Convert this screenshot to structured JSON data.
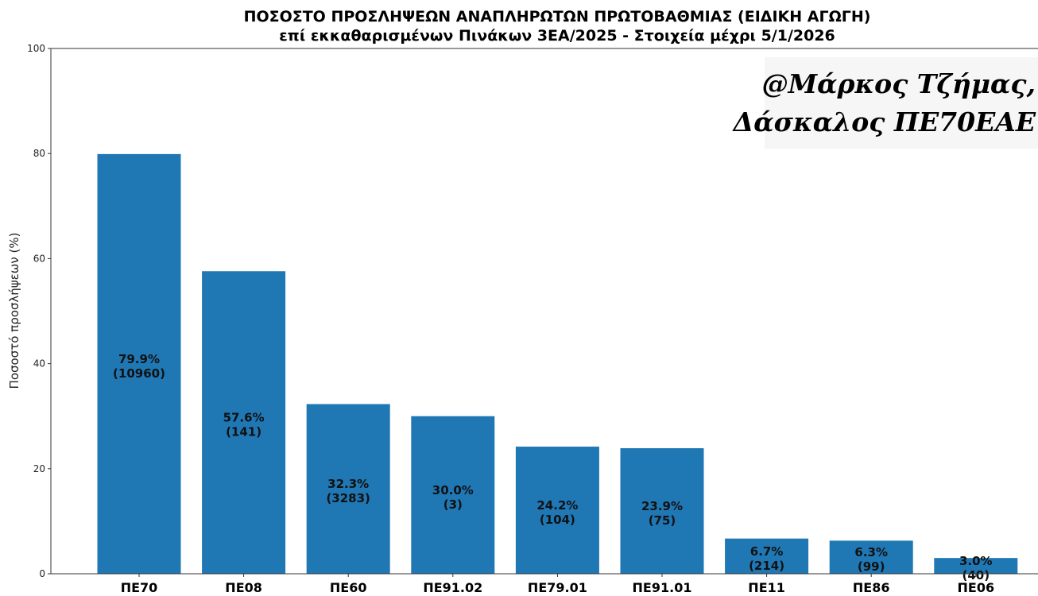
{
  "chart_data": {
    "type": "bar",
    "title": "ΠΟΣΟΣΤΟ ΠΡΟΣΛΗΨΕΩΝ ΑΝΑΠΛΗΡΩΤΩΝ ΠΡΩΤΟΒΑΘΜΙΑΣ (ΕΙΔΙΚΗ ΑΓΩΓΗ)",
    "subtitle": "επί εκκαθαρισμένων Πινάκων 3ΕΑ/2025 - Στοιχεία μέχρι 5/1/2026",
    "xlabel": "",
    "ylabel": "Ποσοστό προσλήψεων (%)",
    "ylim": [
      0,
      100
    ],
    "yticks": [
      "0",
      "20",
      "40",
      "60",
      "80",
      "100"
    ],
    "grid": false,
    "bar_color": "#1f77b4",
    "categories": [
      "ΠΕ70",
      "ΠΕ08",
      "ΠΕ60",
      "ΠΕ91.02",
      "ΠΕ79.01",
      "ΠΕ91.01",
      "ΠΕ11",
      "ΠΕ86",
      "ΠΕ06"
    ],
    "values": [
      79.9,
      57.6,
      32.3,
      30.0,
      24.2,
      23.9,
      6.7,
      6.3,
      3.0
    ],
    "value_labels": [
      "79.9%",
      "57.6%",
      "32.3%",
      "30.0%",
      "24.2%",
      "23.9%",
      "6.7%",
      "6.3%",
      "3.0%"
    ],
    "count_labels": [
      "(10960)",
      "(141)",
      "(3283)",
      "(3)",
      "(104)",
      "(75)",
      "(214)",
      "(99)",
      "(40)"
    ],
    "watermark": [
      "@Μάρκος Τζήμας,",
      "Δάσκαλος ΠΕ70ΕΑΕ"
    ]
  }
}
